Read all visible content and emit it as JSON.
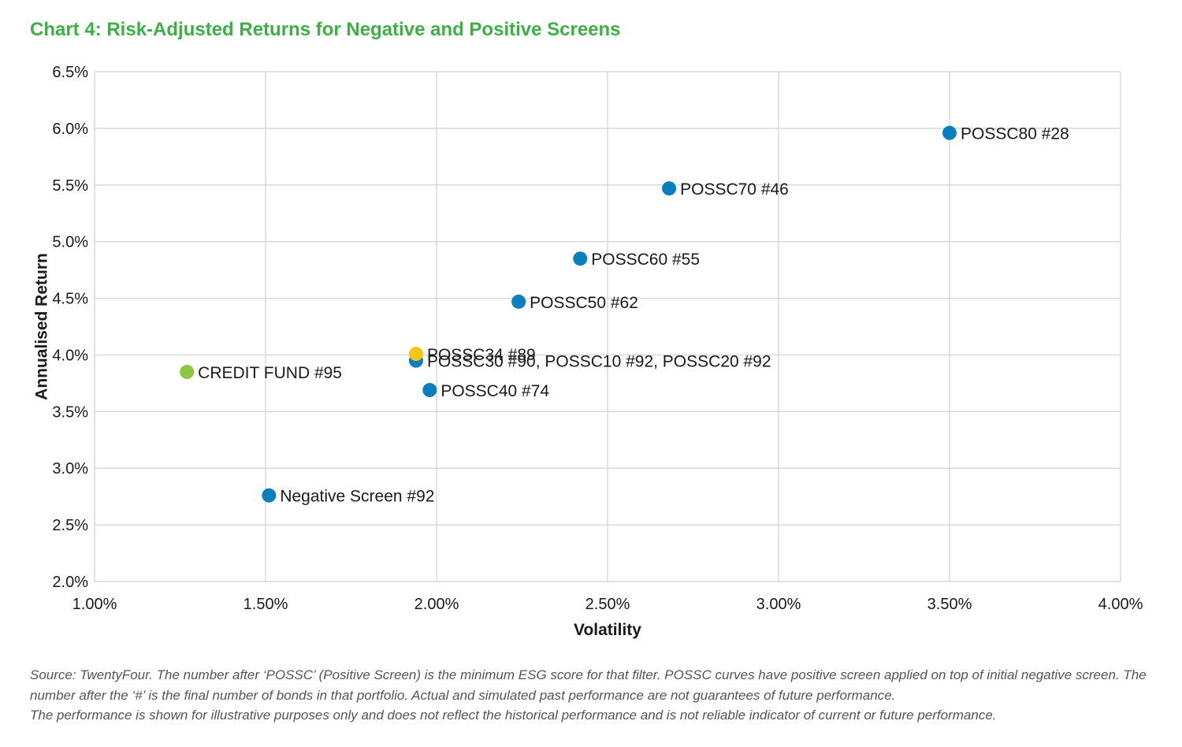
{
  "chart_data": {
    "type": "scatter",
    "title": "Chart 4: Risk-Adjusted Returns for Negative and Positive Screens",
    "xlabel": "Volatility",
    "ylabel": "Annualised Return",
    "xlim": [
      1.0,
      4.0
    ],
    "ylim": [
      2.0,
      6.5
    ],
    "x_ticks": [
      1.0,
      1.5,
      2.0,
      2.5,
      3.0,
      3.5,
      4.0
    ],
    "x_tick_labels": [
      "1.00%",
      "1.50%",
      "2.00%",
      "2.50%",
      "3.00%",
      "3.50%",
      "4.00%"
    ],
    "y_ticks": [
      2.0,
      2.5,
      3.0,
      3.5,
      4.0,
      4.5,
      5.0,
      5.5,
      6.0,
      6.5
    ],
    "y_tick_labels": [
      "2.0%",
      "2.5%",
      "3.0%",
      "3.5%",
      "4.0%",
      "4.5%",
      "5.0%",
      "5.5%",
      "6.0%",
      "6.5%"
    ],
    "grid": true,
    "points": [
      {
        "label": "CREDIT FUND #95",
        "x": 1.27,
        "y": 3.85,
        "color": "#8dc63f"
      },
      {
        "label": "Negative Screen #92",
        "x": 1.51,
        "y": 2.76,
        "color": "#0a7fbf"
      },
      {
        "label": "POSSC30 #90,  POSSC10 #92,  POSSC20 #92",
        "x": 1.94,
        "y": 3.95,
        "color": "#0a7fbf"
      },
      {
        "label": "POSSC34 #89",
        "x": 1.94,
        "y": 4.01,
        "color": "#f5c518"
      },
      {
        "label": "POSSC40 #74",
        "x": 1.98,
        "y": 3.69,
        "color": "#0a7fbf"
      },
      {
        "label": "POSSC50 #62",
        "x": 2.24,
        "y": 4.47,
        "color": "#0a7fbf"
      },
      {
        "label": "POSSC60 #55",
        "x": 2.42,
        "y": 4.85,
        "color": "#0a7fbf"
      },
      {
        "label": "POSSC70 #46",
        "x": 2.68,
        "y": 5.47,
        "color": "#0a7fbf"
      },
      {
        "label": "POSSC80 #28",
        "x": 3.5,
        "y": 5.96,
        "color": "#0a7fbf"
      }
    ]
  },
  "colors": {
    "title": "#3cb043",
    "grid": "#d9d9d9",
    "series_blue": "#0a7fbf",
    "series_green": "#8dc63f",
    "series_yellow": "#f5c518"
  },
  "footnote": {
    "line1": "Source: TwentyFour. The number after ‘POSSC’ (Positive Screen) is the minimum ESG score for that filter. POSSC curves have positive screen applied on top of initial negative screen. The number after the ‘#’ is the final number of bonds in that portfolio. Actual and simulated past performance are not guarantees of future performance.",
    "line2": "The performance is shown for illustrative purposes only and does not reflect the historical performance and is not reliable indicator of current or future performance."
  }
}
